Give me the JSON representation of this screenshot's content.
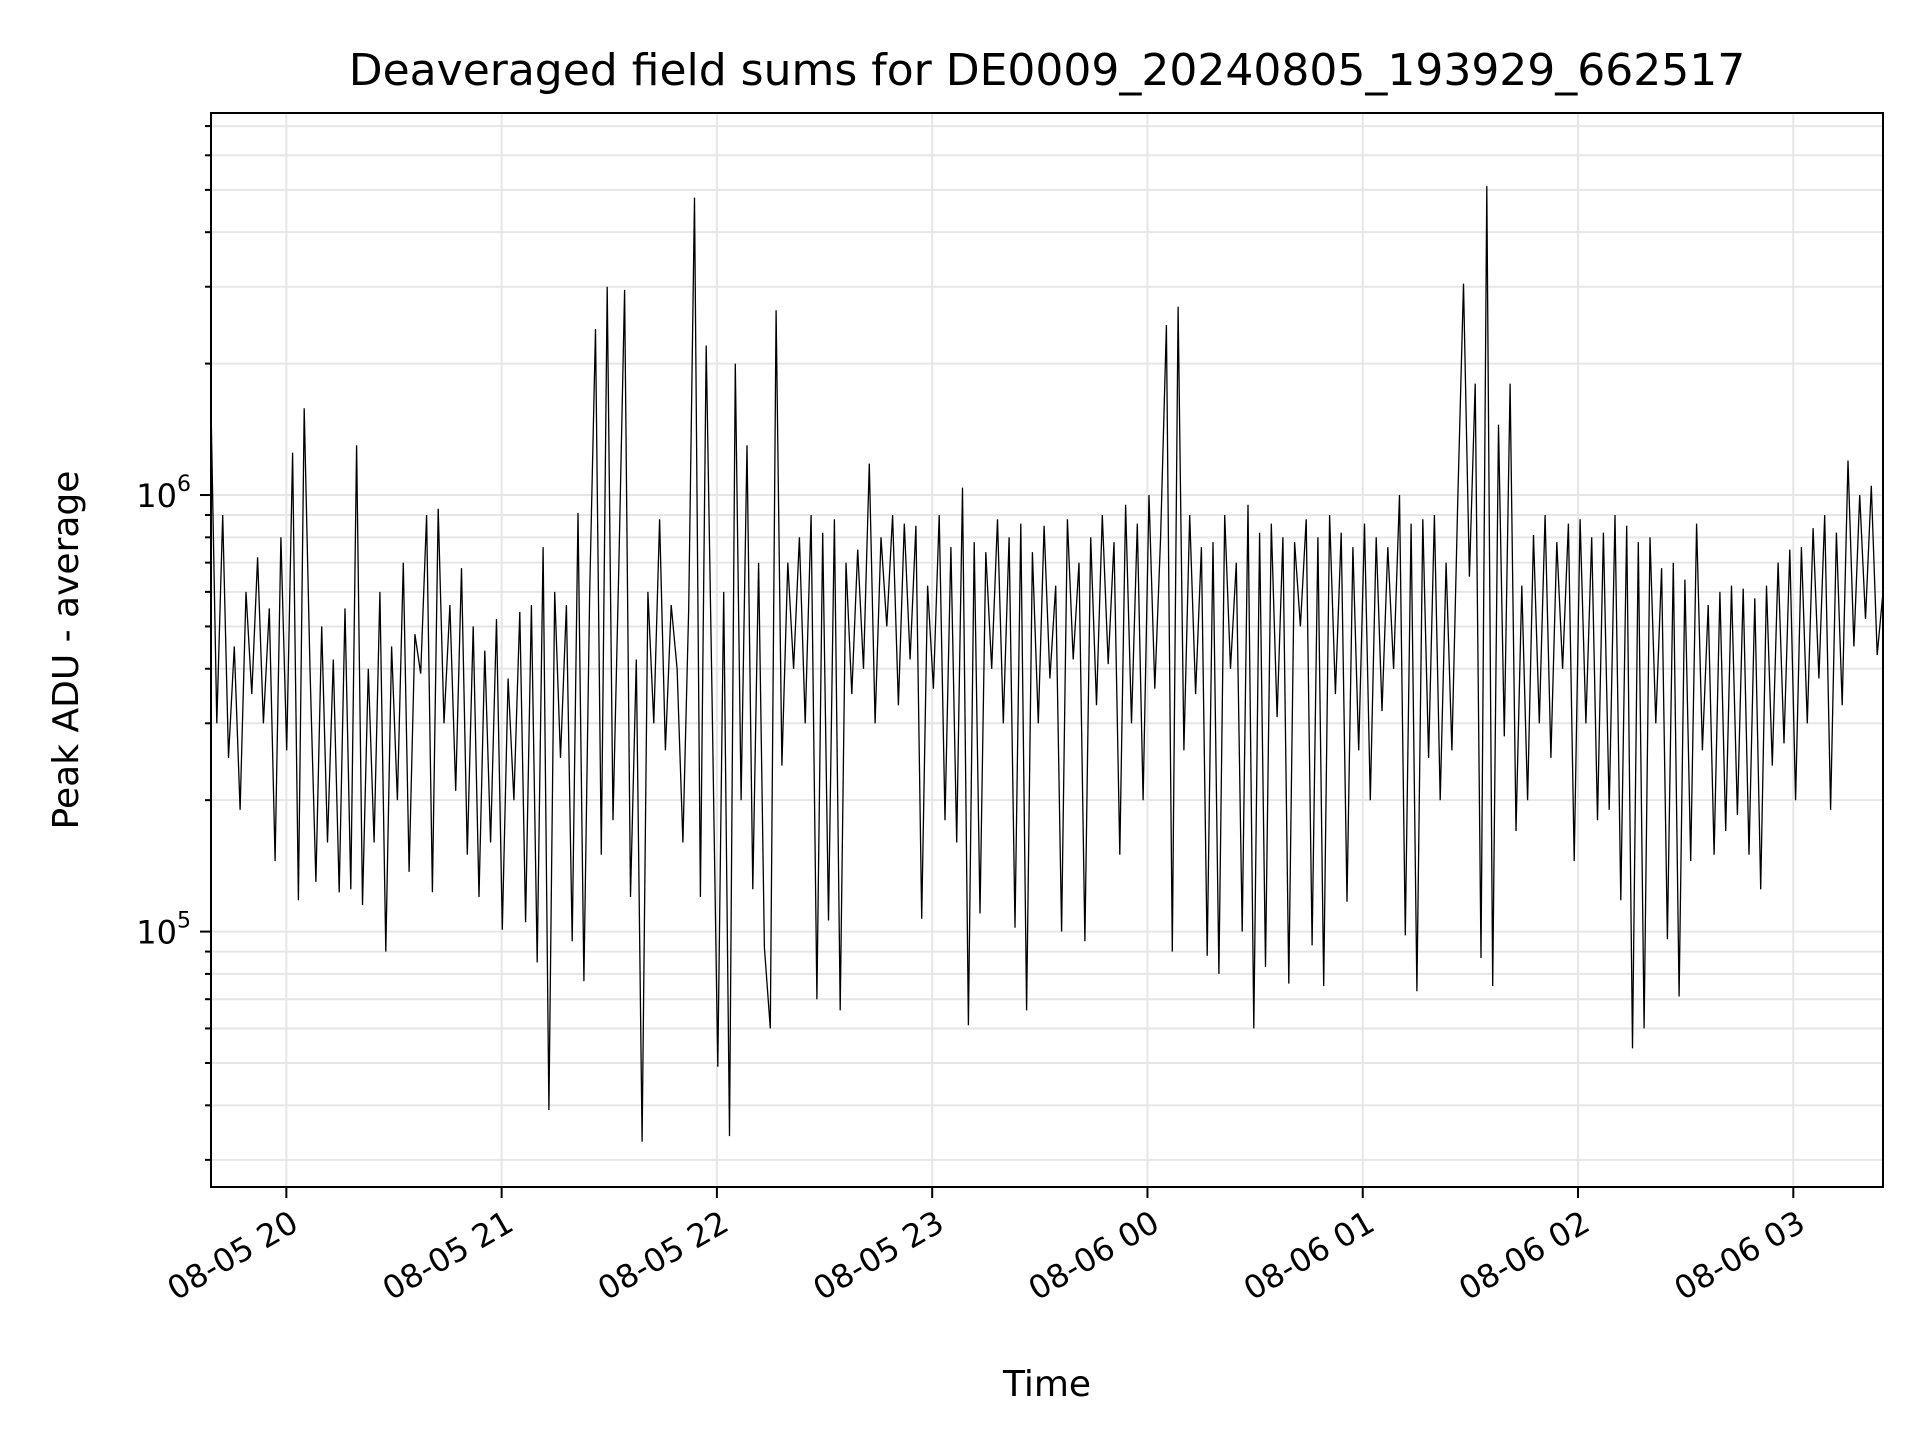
{
  "chart_data": {
    "type": "line",
    "title": "Deaveraged field sums for DE0009_20240805_193929_662517",
    "xlabel": "Time",
    "ylabel": "Peak ADU - average",
    "yscale": "log",
    "ylim": [
      26000,
      7500000
    ],
    "xlim": [
      "2024-08-05 19:39",
      "2024-08-06 03:25"
    ],
    "grid": true,
    "line_color": "#000000",
    "x_ticks": [
      {
        "time": "2024-08-05 20:00",
        "label": "08-05 20"
      },
      {
        "time": "2024-08-05 21:00",
        "label": "08-05 21"
      },
      {
        "time": "2024-08-05 22:00",
        "label": "08-05 22"
      },
      {
        "time": "2024-08-05 23:00",
        "label": "08-05 23"
      },
      {
        "time": "2024-08-06 00:00",
        "label": "08-06 00"
      },
      {
        "time": "2024-08-06 01:00",
        "label": "08-06 01"
      },
      {
        "time": "2024-08-06 02:00",
        "label": "08-06 02"
      },
      {
        "time": "2024-08-06 03:00",
        "label": "08-06 03"
      }
    ],
    "y_major_ticks": [
      {
        "value": 100000,
        "base": "10",
        "exp": "5"
      },
      {
        "value": 1000000,
        "base": "10",
        "exp": "6"
      }
    ],
    "series": [
      {
        "x_start": "2024-08-05 19:39",
        "x_end": "2024-08-06 03:25",
        "values": [
          1600000,
          300000,
          900000,
          250000,
          450000,
          190000,
          600000,
          350000,
          720000,
          300000,
          550000,
          145000,
          800000,
          260000,
          1250000,
          118000,
          1580000,
          400000,
          130000,
          500000,
          160000,
          420000,
          123000,
          550000,
          125000,
          1300000,
          115000,
          400000,
          160000,
          600000,
          90000,
          450000,
          200000,
          700000,
          137000,
          480000,
          390000,
          900000,
          123000,
          930000,
          300000,
          560000,
          210000,
          680000,
          150000,
          500000,
          120000,
          440000,
          160000,
          520000,
          101000,
          380000,
          200000,
          540000,
          105000,
          560000,
          85000,
          760000,
          39000,
          600000,
          250000,
          560000,
          95000,
          910000,
          77000,
          600000,
          2400000,
          150000,
          3000000,
          180000,
          680000,
          2950000,
          120000,
          420000,
          33000,
          600000,
          300000,
          880000,
          260000,
          560000,
          400000,
          160000,
          550000,
          4800000,
          120000,
          2200000,
          350000,
          49000,
          600000,
          34000,
          2000000,
          200000,
          1300000,
          125000,
          700000,
          92000,
          60000,
          2650000,
          240000,
          700000,
          400000,
          800000,
          300000,
          900000,
          70000,
          820000,
          106000,
          880000,
          66000,
          700000,
          350000,
          750000,
          400000,
          1180000,
          300000,
          800000,
          500000,
          900000,
          330000,
          860000,
          420000,
          850000,
          107000,
          620000,
          360000,
          900000,
          180000,
          760000,
          160000,
          1040000,
          61000,
          780000,
          110000,
          740000,
          400000,
          880000,
          300000,
          800000,
          102000,
          860000,
          66000,
          740000,
          300000,
          850000,
          380000,
          620000,
          100000,
          880000,
          420000,
          700000,
          95000,
          800000,
          330000,
          900000,
          410000,
          780000,
          150000,
          950000,
          300000,
          860000,
          200000,
          1000000,
          360000,
          800000,
          2450000,
          90000,
          2700000,
          260000,
          900000,
          350000,
          760000,
          88000,
          780000,
          80000,
          900000,
          400000,
          700000,
          100000,
          950000,
          60000,
          820000,
          83000,
          860000,
          310000,
          800000,
          76000,
          780000,
          500000,
          880000,
          93000,
          800000,
          75000,
          900000,
          350000,
          820000,
          117000,
          760000,
          260000,
          860000,
          200000,
          800000,
          320000,
          760000,
          400000,
          1000000,
          98000,
          860000,
          73000,
          880000,
          250000,
          900000,
          200000,
          700000,
          260000,
          960000,
          3050000,
          650000,
          1800000,
          87000,
          5100000,
          75000,
          1450000,
          280000,
          1800000,
          170000,
          620000,
          200000,
          810000,
          300000,
          900000,
          250000,
          780000,
          400000,
          860000,
          145000,
          880000,
          300000,
          800000,
          180000,
          820000,
          190000,
          900000,
          118000,
          850000,
          54000,
          780000,
          60000,
          800000,
          300000,
          680000,
          96000,
          700000,
          71000,
          640000,
          145000,
          860000,
          260000,
          560000,
          150000,
          600000,
          170000,
          620000,
          185000,
          610000,
          150000,
          580000,
          125000,
          620000,
          240000,
          700000,
          270000,
          750000,
          200000,
          760000,
          300000,
          840000,
          380000,
          900000,
          190000,
          820000,
          330000,
          1200000,
          450000,
          1000000,
          520000,
          1050000,
          430000,
          600000
        ]
      }
    ]
  }
}
